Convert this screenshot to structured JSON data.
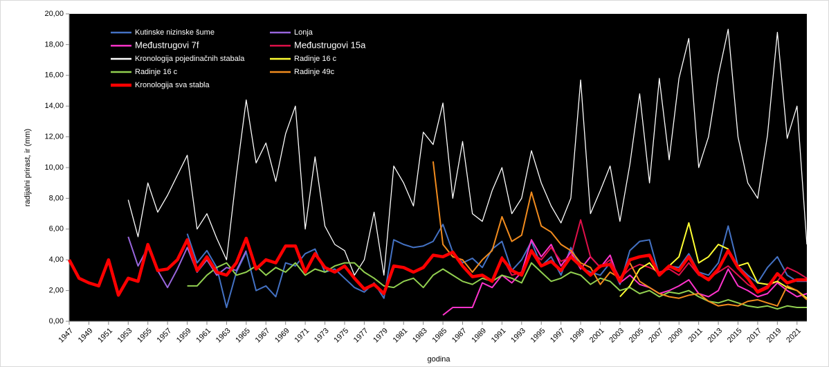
{
  "chart_data": {
    "type": "line",
    "xlabel": "godina",
    "ylabel": "radijalni prirast, ir  (mm)",
    "x": [
      1947,
      1948,
      1949,
      1950,
      1951,
      1952,
      1953,
      1954,
      1955,
      1956,
      1957,
      1958,
      1959,
      1960,
      1961,
      1962,
      1963,
      1964,
      1965,
      1966,
      1967,
      1968,
      1969,
      1970,
      1971,
      1972,
      1973,
      1974,
      1975,
      1976,
      1977,
      1978,
      1979,
      1980,
      1981,
      1982,
      1983,
      1984,
      1985,
      1986,
      1987,
      1988,
      1989,
      1990,
      1991,
      1992,
      1993,
      1994,
      1995,
      1996,
      1997,
      1998,
      1999,
      2000,
      2001,
      2002,
      2003,
      2004,
      2005,
      2006,
      2007,
      2008,
      2009,
      2010,
      2011,
      2012,
      2013,
      2014,
      2015,
      2016,
      2017,
      2018,
      2019,
      2020,
      2021,
      2022
    ],
    "xlim": [
      1947,
      2022
    ],
    "xticks": [
      1947,
      1949,
      1951,
      1953,
      1955,
      1957,
      1959,
      1961,
      1963,
      1965,
      1967,
      1969,
      1971,
      1973,
      1975,
      1977,
      1979,
      1981,
      1983,
      1985,
      1987,
      1989,
      1991,
      1993,
      1995,
      1997,
      1999,
      2001,
      2003,
      2005,
      2007,
      2009,
      2011,
      2013,
      2015,
      2017,
      2019,
      2021
    ],
    "ylim": [
      0,
      20
    ],
    "yticks": [
      {
        "value": 0,
        "label": "0,00"
      },
      {
        "value": 2,
        "label": "2,00"
      },
      {
        "value": 4,
        "label": "4,00"
      },
      {
        "value": 6,
        "label": "6,00"
      },
      {
        "value": 8,
        "label": "8,00"
      },
      {
        "value": 10,
        "label": "10,00"
      },
      {
        "value": 12,
        "label": "12,00"
      },
      {
        "value": 14,
        "label": "14,00"
      },
      {
        "value": 16,
        "label": "16,00"
      },
      {
        "value": 18,
        "label": "18,00"
      },
      {
        "value": 20,
        "label": "20,00"
      }
    ],
    "legend": "upper left",
    "background": "#000000",
    "series": [
      {
        "name": "Kutinske nizinske šume",
        "color": "#4472c4",
        "values": [
          null,
          null,
          null,
          null,
          null,
          null,
          null,
          null,
          null,
          null,
          null,
          null,
          5.7,
          3.8,
          4.6,
          3.5,
          0.9,
          3.2,
          4.5,
          2.0,
          2.3,
          1.6,
          3.8,
          3.6,
          4.4,
          4.7,
          3.2,
          3.4,
          2.8,
          2.2,
          1.9,
          2.5,
          1.5,
          5.3,
          5.0,
          4.8,
          4.9,
          5.2,
          6.3,
          4.5,
          3.8,
          4.1,
          3.5,
          4.7,
          5.2,
          3.3,
          4.0,
          5.2,
          3.6,
          4.2,
          3.0,
          4.8,
          3.5,
          3.2,
          3.0,
          3.8,
          2.4,
          4.6,
          5.2,
          5.3,
          3.0,
          3.6,
          3.5,
          4.4,
          3.2,
          3.0,
          3.8,
          6.2,
          3.6,
          3.0,
          2.5,
          3.5,
          4.2,
          3.0,
          2.6,
          2.6
        ]
      },
      {
        "name": "Lonja",
        "color": "#9966dd",
        "values": [
          null,
          null,
          null,
          null,
          null,
          null,
          5.5,
          3.6,
          4.8,
          3.3,
          2.2,
          3.4,
          4.8,
          3.2,
          4.0,
          3.0,
          3.5,
          3.3,
          4.6,
          null,
          null,
          null,
          null,
          null,
          null,
          null,
          null,
          null,
          null,
          null,
          null,
          null,
          null,
          null,
          null,
          null,
          null,
          null,
          null,
          null,
          null,
          null,
          null,
          null,
          null,
          null,
          null,
          null,
          null,
          null,
          null,
          null,
          null,
          null,
          null,
          null,
          null,
          null,
          null,
          null,
          null,
          null,
          null,
          null,
          null,
          null,
          null,
          null,
          null,
          null,
          null,
          null,
          null,
          null,
          null,
          null
        ]
      },
      {
        "name": "Međustrugovi 7f",
        "color": "#ff33cc",
        "values": [
          null,
          null,
          null,
          null,
          null,
          null,
          null,
          null,
          null,
          null,
          null,
          null,
          null,
          null,
          null,
          null,
          null,
          null,
          null,
          null,
          null,
          null,
          null,
          null,
          null,
          null,
          null,
          null,
          null,
          null,
          null,
          null,
          null,
          null,
          null,
          null,
          null,
          null,
          0.4,
          0.9,
          0.9,
          0.9,
          2.5,
          2.2,
          3.0,
          2.5,
          3.2,
          5.3,
          4.2,
          5.0,
          3.6,
          4.5,
          3.4,
          4.2,
          3.5,
          4.3,
          2.5,
          3.0,
          2.4,
          2.2,
          1.8,
          2.0,
          2.3,
          2.7,
          1.8,
          1.6,
          2.0,
          3.4,
          2.3,
          2.0,
          1.6,
          1.8,
          2.5,
          2.0,
          1.6,
          1.8
        ]
      },
      {
        "name": "Međustrugovi 15a",
        "color": "#e0104a",
        "values": [
          null,
          null,
          null,
          null,
          null,
          null,
          null,
          null,
          null,
          null,
          null,
          null,
          null,
          null,
          null,
          null,
          null,
          null,
          null,
          null,
          null,
          null,
          null,
          null,
          null,
          null,
          null,
          null,
          null,
          null,
          null,
          null,
          null,
          null,
          null,
          null,
          null,
          null,
          null,
          null,
          null,
          null,
          null,
          2.5,
          4.2,
          3.0,
          3.2,
          4.5,
          4.0,
          4.8,
          3.9,
          4.2,
          6.6,
          4.2,
          3.5,
          4.0,
          2.8,
          3.4,
          3.7,
          3.5,
          3.2,
          3.4,
          3.0,
          3.8,
          3.0,
          2.8,
          3.2,
          3.6,
          3.0,
          2.4,
          2.0,
          2.3,
          2.6,
          3.5,
          3.2,
          2.8
        ]
      },
      {
        "name": "Kronologija pojedinačnih stabala",
        "color": "#ffffff",
        "values": [
          null,
          null,
          null,
          null,
          null,
          null,
          7.9,
          5.5,
          9.0,
          7.1,
          8.2,
          9.5,
          10.8,
          6.0,
          7.0,
          5.4,
          4.0,
          9.5,
          14.4,
          10.3,
          11.6,
          9.1,
          12.2,
          14.0,
          6.0,
          10.7,
          6.2,
          5.0,
          4.6,
          3.0,
          4.0,
          7.1,
          3.0,
          10.1,
          9.0,
          7.5,
          12.3,
          11.5,
          14.2,
          8.0,
          11.7,
          7.0,
          6.5,
          8.5,
          10.0,
          7.0,
          8.0,
          11.1,
          9.0,
          7.5,
          6.4,
          8.0,
          15.7,
          7.0,
          8.5,
          10.1,
          6.5,
          10.2,
          14.8,
          9.0,
          15.8,
          10.5,
          15.8,
          18.4,
          10.0,
          12.0,
          16.0,
          19.0,
          12.0,
          9.0,
          8.0,
          12.1,
          18.8,
          11.9,
          14.0,
          5.0
        ]
      },
      {
        "name": "Radinje 16 c",
        "color": "#ffff33",
        "values": [
          null,
          null,
          null,
          null,
          null,
          null,
          null,
          null,
          null,
          null,
          null,
          null,
          null,
          null,
          null,
          null,
          null,
          null,
          null,
          null,
          null,
          null,
          null,
          null,
          null,
          null,
          null,
          null,
          null,
          null,
          null,
          null,
          null,
          null,
          null,
          null,
          null,
          null,
          null,
          null,
          null,
          null,
          null,
          null,
          null,
          null,
          null,
          null,
          null,
          null,
          null,
          null,
          null,
          null,
          null,
          null,
          1.6,
          2.3,
          3.4,
          3.8,
          3.0,
          3.6,
          4.2,
          6.4,
          3.8,
          4.2,
          5.0,
          4.7,
          3.6,
          3.8,
          2.5,
          2.4,
          2.6,
          2.2,
          2.0,
          1.5
        ]
      },
      {
        "name": "Radinje 16 c",
        "color": "#92d050",
        "values": [
          null,
          null,
          null,
          null,
          null,
          null,
          null,
          null,
          null,
          null,
          null,
          null,
          2.3,
          2.3,
          3.0,
          3.5,
          3.8,
          3.0,
          3.2,
          3.6,
          3.0,
          3.5,
          3.2,
          3.8,
          3.0,
          3.4,
          3.2,
          3.6,
          3.8,
          3.8,
          3.2,
          2.8,
          2.3,
          2.2,
          2.6,
          2.8,
          2.2,
          3.0,
          3.4,
          3.0,
          2.6,
          2.4,
          2.8,
          2.6,
          3.0,
          2.8,
          2.5,
          3.8,
          3.2,
          2.6,
          2.8,
          3.2,
          3.0,
          2.4,
          2.8,
          2.6,
          2.0,
          2.2,
          1.8,
          2.0,
          1.6,
          1.9,
          1.8,
          2.0,
          1.6,
          1.3,
          1.2,
          1.4,
          1.2,
          1.0,
          0.9,
          1.0,
          0.8,
          1.0,
          0.9,
          0.9
        ]
      },
      {
        "name": "Radinje 49c",
        "color": "#f28c1e",
        "values": [
          null,
          null,
          null,
          null,
          null,
          null,
          null,
          null,
          null,
          null,
          null,
          null,
          null,
          null,
          null,
          null,
          null,
          null,
          null,
          null,
          null,
          null,
          null,
          null,
          null,
          null,
          null,
          null,
          null,
          null,
          null,
          null,
          null,
          null,
          null,
          null,
          null,
          10.4,
          5.0,
          4.2,
          4.0,
          3.2,
          4.0,
          4.6,
          6.8,
          5.2,
          5.6,
          8.4,
          6.2,
          5.8,
          5.0,
          4.6,
          3.8,
          3.5,
          2.4,
          3.2,
          2.8,
          3.8,
          2.6,
          2.2,
          1.8,
          1.6,
          1.5,
          1.7,
          1.8,
          1.3,
          1.0,
          1.1,
          1.0,
          1.3,
          1.4,
          1.2,
          1.0,
          2.3,
          2.0,
          1.4
        ]
      },
      {
        "name": "Kronologija sva stabla",
        "color": "#ff0000",
        "values": [
          4.0,
          2.8,
          2.5,
          2.3,
          4.0,
          1.7,
          2.8,
          2.6,
          5.0,
          3.3,
          3.4,
          4.0,
          5.3,
          3.3,
          4.2,
          3.2,
          3.0,
          3.8,
          5.4,
          3.4,
          4.0,
          3.8,
          4.9,
          4.9,
          3.2,
          4.4,
          3.5,
          3.2,
          3.6,
          2.8,
          2.1,
          2.4,
          1.8,
          3.6,
          3.5,
          3.2,
          3.5,
          4.3,
          4.2,
          4.5,
          3.6,
          2.9,
          3.0,
          2.6,
          4.1,
          3.3,
          3.0,
          4.6,
          3.6,
          3.9,
          3.3,
          4.2,
          3.6,
          3.0,
          3.6,
          3.7,
          2.6,
          4.0,
          4.2,
          4.3,
          3.0,
          3.6,
          3.3,
          4.2,
          3.1,
          2.7,
          3.4,
          4.6,
          3.5,
          2.8,
          1.9,
          2.2,
          3.1,
          2.5,
          2.7,
          2.7
        ]
      }
    ]
  }
}
